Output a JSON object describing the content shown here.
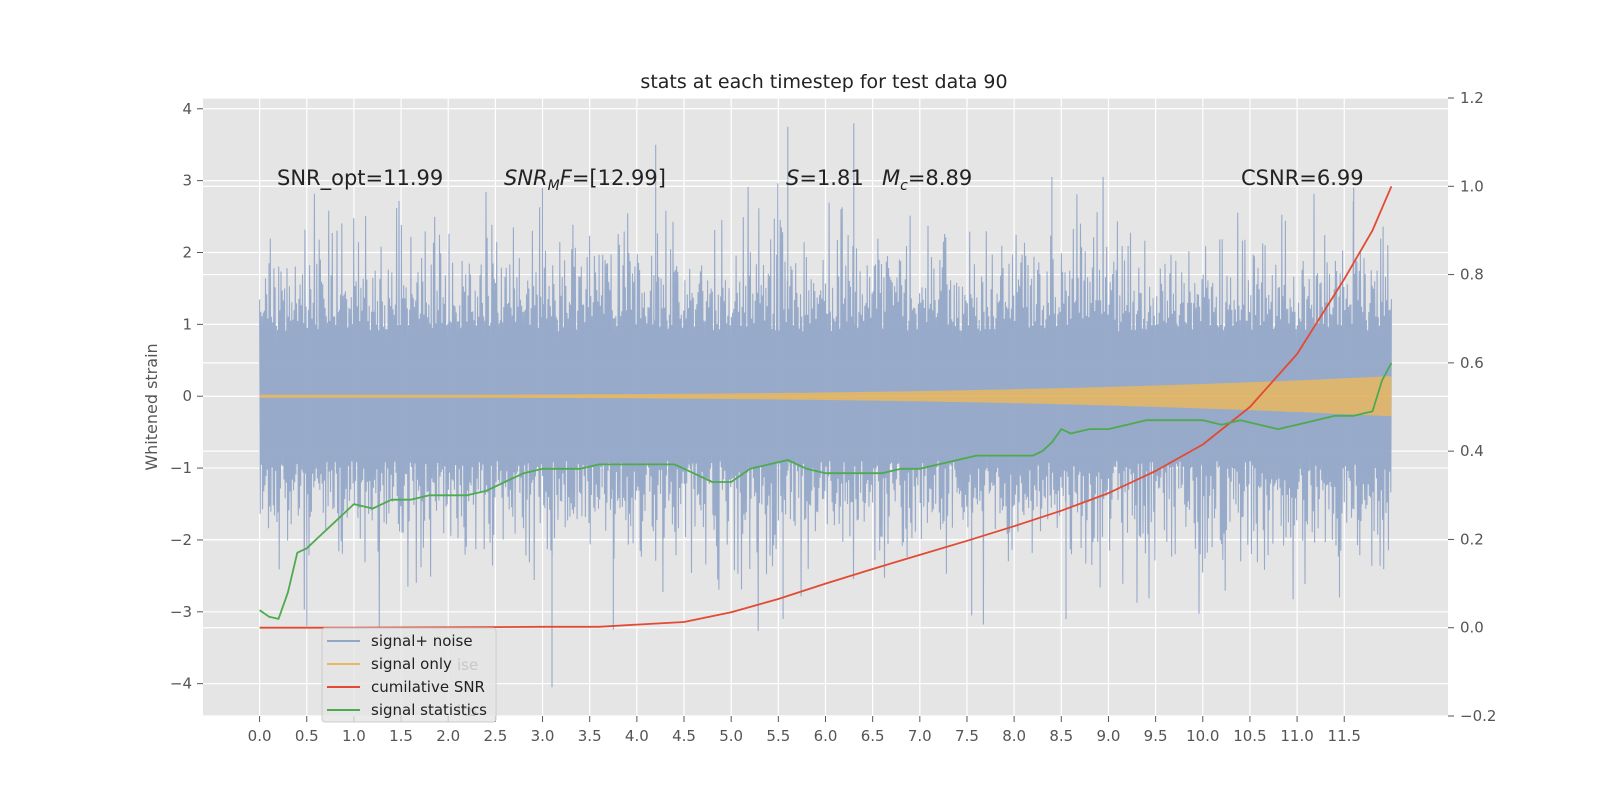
{
  "chart_data": {
    "type": "line",
    "title": "stats at each timestep for test data 90",
    "ylabel": "Whitened strain",
    "xlabel": "",
    "xlim": [
      -0.6,
      12.6
    ],
    "ylim": [
      -4.45,
      4.15
    ],
    "y2lim": [
      -0.2,
      1.2
    ],
    "grid": true,
    "x_ticks": [
      "0.0",
      "0.5",
      "1.0",
      "1.5",
      "2.0",
      "2.5",
      "3.0",
      "3.5",
      "4.0",
      "4.5",
      "5.0",
      "5.5",
      "6.0",
      "6.5",
      "7.0",
      "7.5",
      "8.0",
      "8.5",
      "9.0",
      "9.5",
      "10.0",
      "10.5",
      "11.0",
      "11.5"
    ],
    "y_ticks": [
      "4",
      "3",
      "2",
      "1",
      "0",
      "−1",
      "−2",
      "−3",
      "−4"
    ],
    "y2_ticks": [
      "1.2",
      "1.0",
      "0.8",
      "0.6",
      "0.4",
      "0.2",
      "0.0",
      "−0.2"
    ],
    "annotations": {
      "snr_opt": "SNR_opt=11.99",
      "snr_mf_sym": "SNR",
      "snr_mf_sub": "M",
      "snr_mf_f": "F",
      "snr_mf_val": "=[12.99]",
      "s_sym": "S",
      "s_val": "=1.81",
      "mc_sym": "M",
      "mc_sub": "c",
      "mc_val": "=8.89",
      "csnr": "CSNR=6.99"
    },
    "legend": {
      "placement": "lower-left",
      "entries": [
        "signal+ noise",
        "signal only",
        "cumilative SNR",
        "signal statistics"
      ],
      "ghost_text": [
        "ise",
        "ics"
      ]
    },
    "series": [
      {
        "name": "signal+ noise",
        "color": "#92a6c8",
        "kind": "noise",
        "x_range": [
          0,
          12
        ],
        "typical_max": 2.0,
        "typical_min": -2.0,
        "spikes": [
          [
            0.1,
            1.85
          ],
          [
            3.0,
            2.9
          ],
          [
            4.2,
            3.5
          ],
          [
            5.6,
            3.75
          ],
          [
            6.3,
            3.8
          ],
          [
            8.4,
            3.05
          ],
          [
            11.6,
            2.9
          ],
          [
            3.1,
            -4.05
          ],
          [
            0.5,
            -3.2
          ],
          [
            3.75,
            -3.25
          ],
          [
            5.55,
            -3.1
          ],
          [
            7.55,
            -3.05
          ],
          [
            8.55,
            -3.1
          ],
          [
            11.45,
            -2.8
          ]
        ]
      },
      {
        "name": "signal only",
        "color": "#e8b860",
        "kind": "chirp",
        "x_range": [
          0,
          12
        ],
        "amplitude_start": 0.02,
        "amplitude_end": 0.28
      },
      {
        "name": "cumilative SNR",
        "color": "#e24a33",
        "axis": "right",
        "x": [
          0,
          1,
          2,
          3,
          3.6,
          4,
          4.5,
          5,
          5.5,
          6,
          6.5,
          7,
          7.5,
          8,
          8.5,
          9,
          9.5,
          10,
          10.5,
          11,
          11.5,
          11.8,
          12
        ],
        "values": [
          0,
          0,
          0.001,
          0.002,
          0.002,
          0.007,
          0.013,
          0.035,
          0.065,
          0.1,
          0.133,
          0.165,
          0.197,
          0.23,
          0.265,
          0.305,
          0.355,
          0.415,
          0.5,
          0.62,
          0.79,
          0.9,
          1.0
        ]
      },
      {
        "name": "signal statistics",
        "color": "#4daa4d",
        "axis": "right",
        "x": [
          0,
          0.1,
          0.2,
          0.3,
          0.4,
          0.5,
          0.6,
          0.8,
          1.0,
          1.2,
          1.4,
          1.6,
          1.8,
          2.0,
          2.2,
          2.4,
          2.6,
          2.8,
          3.0,
          3.2,
          3.4,
          3.6,
          3.8,
          4.0,
          4.2,
          4.4,
          4.6,
          4.8,
          5.0,
          5.2,
          5.4,
          5.6,
          5.8,
          6.0,
          6.2,
          6.4,
          6.6,
          6.8,
          7.0,
          7.2,
          7.4,
          7.6,
          7.8,
          8.0,
          8.2,
          8.3,
          8.4,
          8.5,
          8.6,
          8.8,
          9.0,
          9.2,
          9.4,
          9.6,
          9.8,
          10.0,
          10.2,
          10.4,
          10.6,
          10.8,
          11.0,
          11.2,
          11.4,
          11.6,
          11.8,
          11.9,
          12.0
        ],
        "values": [
          0.04,
          0.025,
          0.02,
          0.08,
          0.17,
          0.18,
          0.2,
          0.24,
          0.28,
          0.27,
          0.29,
          0.29,
          0.3,
          0.3,
          0.3,
          0.31,
          0.33,
          0.35,
          0.36,
          0.36,
          0.36,
          0.37,
          0.37,
          0.37,
          0.37,
          0.37,
          0.35,
          0.33,
          0.33,
          0.36,
          0.37,
          0.38,
          0.36,
          0.35,
          0.35,
          0.35,
          0.35,
          0.36,
          0.36,
          0.37,
          0.38,
          0.39,
          0.39,
          0.39,
          0.39,
          0.4,
          0.42,
          0.45,
          0.44,
          0.45,
          0.45,
          0.46,
          0.47,
          0.47,
          0.47,
          0.47,
          0.46,
          0.47,
          0.46,
          0.45,
          0.46,
          0.47,
          0.48,
          0.48,
          0.49,
          0.56,
          0.6
        ]
      }
    ]
  }
}
